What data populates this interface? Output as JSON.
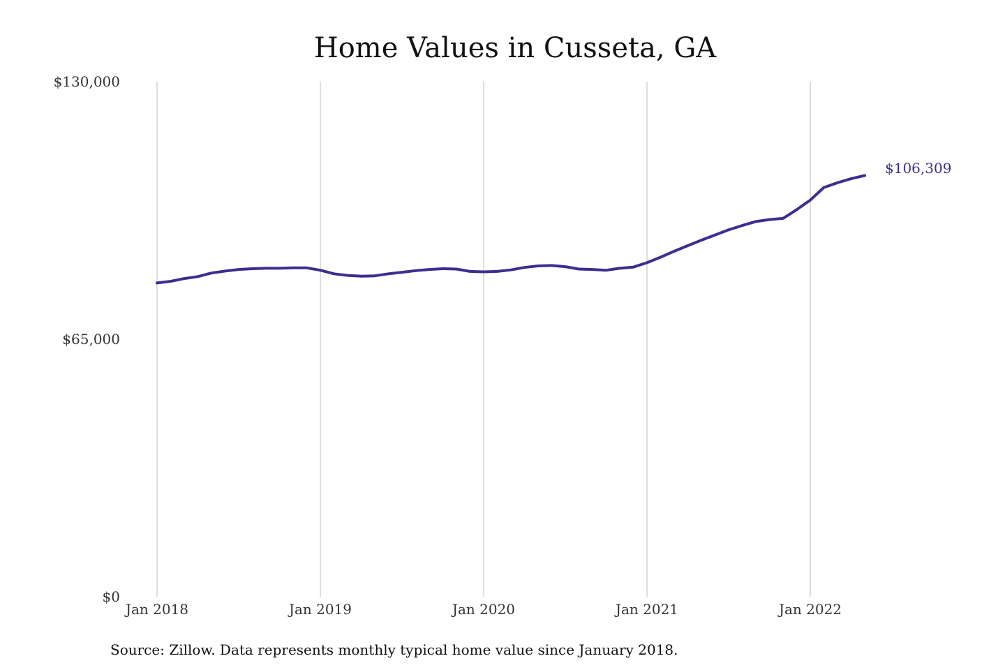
{
  "colors": {
    "line": "#3b2f8f",
    "grid": "#bdbdbd",
    "text": "#111111"
  },
  "source_note": "Source: Zillow. Data represents monthly typical home value since January 2018.",
  "chart_data": {
    "type": "line",
    "title": "Home Values in Cusseta, GA",
    "xlabel": "",
    "ylabel": "",
    "ylim": [
      0,
      130000
    ],
    "y_ticks": [
      {
        "value": 0,
        "label": "$0"
      },
      {
        "value": 65000,
        "label": "$65,000"
      },
      {
        "value": 130000,
        "label": "$130,000"
      }
    ],
    "x_ticks": [
      {
        "x": "2018-01",
        "label": "Jan 2018"
      },
      {
        "x": "2019-01",
        "label": "Jan 2019"
      },
      {
        "x": "2020-01",
        "label": "Jan 2020"
      },
      {
        "x": "2021-01",
        "label": "Jan 2021"
      },
      {
        "x": "2022-01",
        "label": "Jan 2022"
      }
    ],
    "grid": "vertical",
    "end_label": "$106,309",
    "series": [
      {
        "x": [
          "2018-01",
          "2018-02",
          "2018-03",
          "2018-04",
          "2018-05",
          "2018-06",
          "2018-07",
          "2018-08",
          "2018-09",
          "2018-10",
          "2018-11",
          "2018-12",
          "2019-01",
          "2019-02",
          "2019-03",
          "2019-04",
          "2019-05",
          "2019-06",
          "2019-07",
          "2019-08",
          "2019-09",
          "2019-10",
          "2019-11",
          "2019-12",
          "2020-01",
          "2020-02",
          "2020-03",
          "2020-04",
          "2020-05",
          "2020-06",
          "2020-07",
          "2020-08",
          "2020-09",
          "2020-10",
          "2020-11",
          "2020-12",
          "2021-01",
          "2021-02",
          "2021-03",
          "2021-04",
          "2021-05",
          "2021-06",
          "2021-07",
          "2021-08",
          "2021-09",
          "2021-10",
          "2021-11",
          "2021-12",
          "2022-01",
          "2022-02",
          "2022-03",
          "2022-04",
          "2022-05"
        ],
        "values": [
          79200,
          79600,
          80300,
          80800,
          81700,
          82200,
          82600,
          82800,
          82900,
          82900,
          83000,
          83000,
          82400,
          81500,
          81100,
          80900,
          81000,
          81500,
          81900,
          82300,
          82600,
          82800,
          82700,
          82100,
          82000,
          82100,
          82500,
          83100,
          83500,
          83600,
          83300,
          82700,
          82600,
          82400,
          82900,
          83200,
          84300,
          85700,
          87200,
          88600,
          90000,
          91300,
          92600,
          93700,
          94700,
          95200,
          95500,
          97700,
          100100,
          103300,
          104500,
          105500,
          106309
        ]
      }
    ]
  }
}
